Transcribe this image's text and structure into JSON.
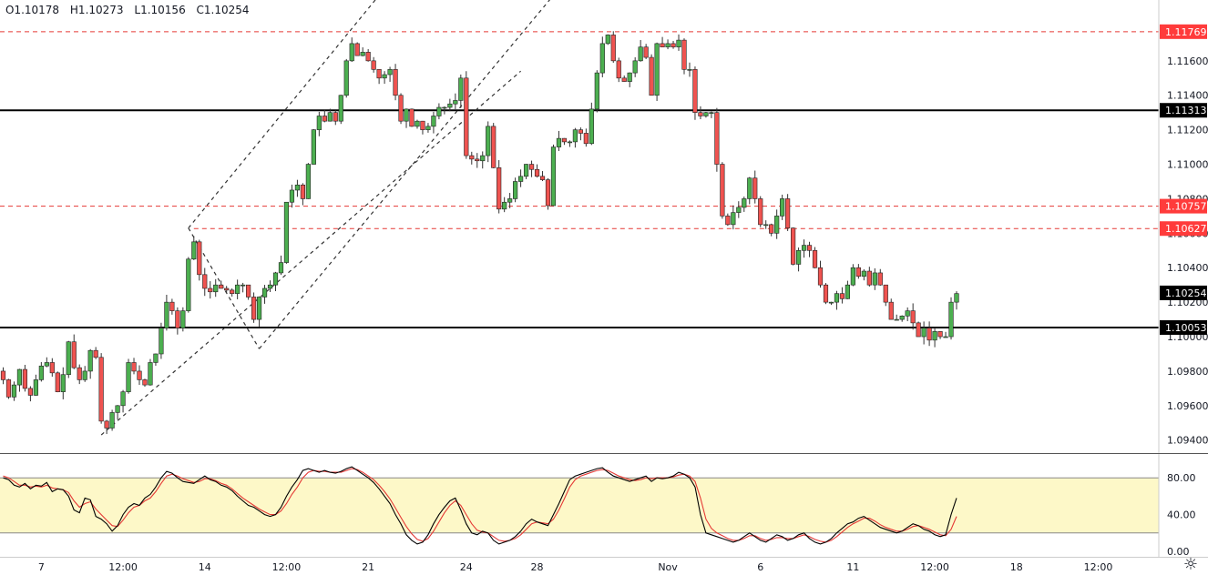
{
  "ohlc": {
    "open": "O1.10178",
    "high": "H1.10273",
    "low": "L1.10156",
    "close": "C1.10254"
  },
  "chart_data": {
    "type": "candlestick",
    "price_axis": {
      "ticks": [
        "1.09400",
        "1.09600",
        "1.09800",
        "1.10000",
        "1.10200",
        "1.10400",
        "1.10600",
        "1.10800",
        "1.11000",
        "1.11200",
        "1.11400",
        "1.11600"
      ],
      "range": [
        1.0933,
        1.119
      ]
    },
    "price_labels": [
      {
        "text": "1.11769",
        "price": 1.11769,
        "style": "red"
      },
      {
        "text": "1.11313",
        "price": 1.11313,
        "style": "black"
      },
      {
        "text": "1.10757",
        "price": 1.10757,
        "style": "red"
      },
      {
        "text": "1.10627",
        "price": 1.10627,
        "style": "red"
      },
      {
        "text": "1.10254",
        "price": 1.10254,
        "style": "black"
      },
      {
        "text": "1.10053",
        "price": 1.10053,
        "style": "black"
      }
    ],
    "horizontal_lines": [
      {
        "price": 1.11769,
        "style": "dashed",
        "color": "#e53935"
      },
      {
        "price": 1.11313,
        "style": "solid",
        "color": "#000000"
      },
      {
        "price": 1.10757,
        "style": "dashed",
        "color": "#e53935"
      },
      {
        "price": 1.10627,
        "style": "dashed",
        "color": "#e53935",
        "from_bar": 35
      },
      {
        "price": 1.10053,
        "style": "solid",
        "color": "#000000"
      }
    ],
    "time_axis": [
      {
        "label": "7",
        "bar": 7
      },
      {
        "label": "12:00",
        "bar": 22
      },
      {
        "label": "14",
        "bar": 37
      },
      {
        "label": "12:00",
        "bar": 52
      },
      {
        "label": "21",
        "bar": 67
      },
      {
        "label": "24",
        "bar": 85
      },
      {
        "label": "28",
        "bar": 98
      },
      {
        "label": "Nov",
        "bar": 122
      },
      {
        "label": "6",
        "bar": 139
      },
      {
        "label": "11",
        "bar": 156
      },
      {
        "label": "12:00",
        "bar": 171
      },
      {
        "label": "18",
        "bar": 186
      },
      {
        "label": "12:00",
        "bar": 201
      }
    ],
    "closes": [
      1.0975,
      1.0965,
      1.0972,
      1.0981,
      1.097,
      1.0966,
      1.0975,
      1.0983,
      1.0985,
      1.0979,
      1.0968,
      1.0978,
      1.0997,
      1.0982,
      1.0975,
      1.098,
      1.0992,
      1.0988,
      1.0951,
      1.0947,
      1.0956,
      1.096,
      1.0968,
      1.0985,
      1.098,
      1.0975,
      1.0972,
      1.0985,
      1.099,
      1.1005,
      1.102,
      1.1015,
      1.1005,
      1.1015,
      1.1045,
      1.1055,
      1.1036,
      1.1028,
      1.1026,
      1.103,
      1.1028,
      1.1027,
      1.1025,
      1.103,
      1.103,
      1.1023,
      1.101,
      1.1023,
      1.1028,
      1.103,
      1.1037,
      1.1043,
      1.1078,
      1.1085,
      1.1088,
      1.108,
      1.11,
      1.112,
      1.1128,
      1.1125,
      1.113,
      1.1125,
      1.114,
      1.116,
      1.117,
      1.1163,
      1.1165,
      1.116,
      1.1155,
      1.115,
      1.1152,
      1.1155,
      1.114,
      1.1125,
      1.1132,
      1.1122,
      1.1125,
      1.112,
      1.1122,
      1.1128,
      1.1133,
      1.1133,
      1.1135,
      1.1137,
      1.115,
      1.1105,
      1.1103,
      1.1102,
      1.1105,
      1.1122,
      1.1098,
      1.1074,
      1.1078,
      1.108,
      1.109,
      1.1093,
      1.11,
      1.1097,
      1.1093,
      1.1091,
      1.1076,
      1.111,
      1.1115,
      1.1113,
      1.1113,
      1.112,
      1.1118,
      1.1112,
      1.1132,
      1.1153,
      1.117,
      1.1175,
      1.116,
      1.115,
      1.1148,
      1.1153,
      1.116,
      1.1168,
      1.1162,
      1.114,
      1.117,
      1.1168,
      1.117,
      1.1168,
      1.1172,
      1.1155,
      1.1155,
      1.113,
      1.1128,
      1.113,
      1.113,
      1.11,
      1.107,
      1.1065,
      1.1072,
      1.1075,
      1.108,
      1.1092,
      1.108,
      1.1065,
      1.1065,
      1.106,
      1.107,
      1.108,
      1.1063,
      1.1042,
      1.105,
      1.1053,
      1.105,
      1.104,
      1.103,
      1.102,
      1.102,
      1.1025,
      1.1022,
      1.103,
      1.104,
      1.1035,
      1.1038,
      1.103,
      1.1037,
      1.103,
      1.102,
      1.101,
      1.101,
      1.1012,
      1.1015,
      1.1008,
      1.1,
      1.1005,
      1.0998,
      1.1003,
      1.1,
      1.1,
      1.102,
      1.1025
    ],
    "channel": {
      "lower": [
        [
          18,
          1.0943
        ],
        [
          95,
          1.1154
        ]
      ],
      "upper": [
        [
          34,
          1.1063
        ],
        [
          69,
          1.1198
        ]
      ],
      "mid": [
        [
          47,
          1.0993
        ],
        [
          101,
          1.1198
        ]
      ],
      "pattern": [
        [
          34,
          1.1063
        ],
        [
          47,
          1.0993
        ]
      ]
    },
    "oscillator": {
      "ticks": [
        "80.00",
        "40.00",
        "0.00"
      ],
      "range": [
        0,
        100
      ],
      "band": [
        20,
        80
      ],
      "k": [
        80,
        78,
        72,
        70,
        74,
        68,
        72,
        71,
        75,
        65,
        68,
        67,
        60,
        45,
        42,
        58,
        56,
        38,
        35,
        30,
        22,
        28,
        40,
        48,
        52,
        50,
        58,
        62,
        70,
        80,
        87,
        85,
        80,
        76,
        75,
        74,
        78,
        82,
        78,
        76,
        72,
        70,
        66,
        60,
        55,
        50,
        48,
        44,
        40,
        38,
        40,
        48,
        60,
        70,
        78,
        88,
        90,
        88,
        86,
        88,
        86,
        85,
        87,
        90,
        92,
        88,
        84,
        80,
        75,
        68,
        60,
        52,
        40,
        30,
        18,
        12,
        8,
        10,
        18,
        30,
        40,
        48,
        55,
        58,
        45,
        30,
        20,
        18,
        22,
        20,
        12,
        8,
        10,
        12,
        16,
        22,
        30,
        35,
        32,
        30,
        28,
        40,
        52,
        65,
        78,
        82,
        84,
        86,
        88,
        90,
        91,
        86,
        82,
        80,
        78,
        76,
        78,
        80,
        82,
        76,
        80,
        79,
        80,
        82,
        86,
        84,
        80,
        70,
        40,
        20,
        18,
        16,
        14,
        12,
        10,
        12,
        16,
        20,
        16,
        12,
        10,
        14,
        18,
        16,
        12,
        14,
        18,
        20,
        14,
        10,
        8,
        10,
        14,
        20,
        25,
        30,
        32,
        36,
        38,
        34,
        30,
        26,
        24,
        22,
        20,
        22,
        26,
        30,
        28,
        24,
        22,
        18,
        16,
        18,
        40,
        58
      ],
      "d": [
        82,
        80,
        76,
        72,
        72,
        70,
        71,
        70,
        72,
        69,
        68,
        67,
        64,
        55,
        48,
        52,
        54,
        46,
        40,
        34,
        28,
        27,
        34,
        42,
        48,
        50,
        55,
        58,
        65,
        74,
        82,
        84,
        82,
        79,
        77,
        75,
        76,
        79,
        79,
        77,
        74,
        72,
        68,
        63,
        58,
        54,
        50,
        46,
        43,
        40,
        40,
        44,
        52,
        62,
        70,
        80,
        86,
        88,
        87,
        87,
        86,
        86,
        86,
        88,
        90,
        89,
        86,
        82,
        78,
        72,
        65,
        57,
        47,
        37,
        27,
        19,
        13,
        11,
        14,
        22,
        32,
        42,
        50,
        55,
        50,
        40,
        30,
        23,
        21,
        20,
        16,
        12,
        11,
        12,
        14,
        18,
        24,
        30,
        32,
        31,
        30,
        35,
        45,
        57,
        70,
        78,
        82,
        84,
        86,
        88,
        89,
        88,
        85,
        82,
        80,
        78,
        77,
        78,
        80,
        79,
        80,
        80,
        80,
        81,
        83,
        84,
        82,
        76,
        58,
        35,
        25,
        20,
        17,
        14,
        12,
        12,
        14,
        17,
        17,
        14,
        12,
        13,
        15,
        15,
        14,
        14,
        16,
        18,
        16,
        13,
        11,
        10,
        12,
        16,
        21,
        26,
        30,
        33,
        36,
        36,
        33,
        29,
        26,
        24,
        22,
        22,
        24,
        27,
        28,
        26,
        24,
        21,
        18,
        17,
        24,
        38
      ]
    },
    "colors": {
      "up": "#4caf50",
      "down": "#ef5350",
      "wick": "#333333",
      "k_line": "#000000",
      "d_line": "#e53935",
      "band_fill": "#fdf8c8",
      "axis_text": "#131722",
      "red_label": "#ff3b3b",
      "black_label": "#000000"
    }
  }
}
